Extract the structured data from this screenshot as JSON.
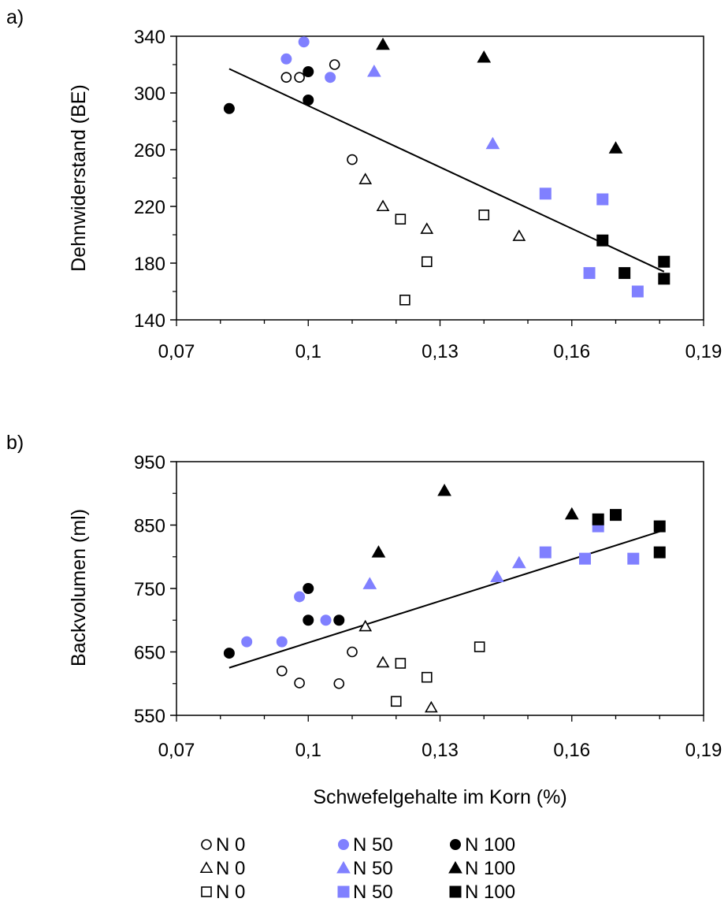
{
  "colors": {
    "n0": "#000000",
    "n50": "#8080ff",
    "n100": "#000000"
  },
  "chart_data": [
    {
      "type": "scatter",
      "panel_label": "a)",
      "ylabel": "Dehnwiderstand (BE)",
      "xlim": [
        0.07,
        0.19
      ],
      "ylim": [
        140,
        340
      ],
      "x_ticks": [
        "0,07",
        "0,1",
        "0,13",
        "0,16",
        "0,19"
      ],
      "y_ticks": [
        "140",
        "180",
        "220",
        "260",
        "300",
        "340"
      ],
      "trendline": [
        [
          0.082,
          317
        ],
        [
          0.181,
          174
        ]
      ],
      "series": [
        {
          "marker": "circle-open",
          "group": "N 0",
          "points": [
            [
              0.095,
              311
            ],
            [
              0.098,
              311
            ],
            [
              0.106,
              320
            ],
            [
              0.11,
              253
            ]
          ]
        },
        {
          "marker": "circle-filled-blue",
          "group": "N 50",
          "points": [
            [
              0.095,
              324
            ],
            [
              0.099,
              336
            ],
            [
              0.105,
              311
            ]
          ]
        },
        {
          "marker": "circle-filled",
          "group": "N 100",
          "points": [
            [
              0.082,
              289
            ],
            [
              0.1,
              315
            ],
            [
              0.1,
              295
            ]
          ]
        },
        {
          "marker": "triangle-open",
          "group": "N 0",
          "points": [
            [
              0.113,
              239
            ],
            [
              0.117,
              220
            ],
            [
              0.127,
              204
            ],
            [
              0.148,
              199
            ]
          ]
        },
        {
          "marker": "triangle-filled-blue",
          "group": "N 50",
          "points": [
            [
              0.115,
              315
            ],
            [
              0.142,
              264
            ]
          ]
        },
        {
          "marker": "triangle-filled",
          "group": "N 100",
          "points": [
            [
              0.117,
              334
            ],
            [
              0.14,
              325
            ],
            [
              0.17,
              261
            ]
          ]
        },
        {
          "marker": "square-open",
          "group": "N 0",
          "points": [
            [
              0.121,
              211
            ],
            [
              0.127,
              181
            ],
            [
              0.122,
              154
            ],
            [
              0.14,
              214
            ]
          ]
        },
        {
          "marker": "square-filled-blue",
          "group": "N 50",
          "points": [
            [
              0.154,
              229
            ],
            [
              0.164,
              173
            ],
            [
              0.167,
              225
            ],
            [
              0.175,
              160
            ]
          ]
        },
        {
          "marker": "square-filled",
          "group": "N 100",
          "points": [
            [
              0.167,
              196
            ],
            [
              0.172,
              173
            ],
            [
              0.181,
              181
            ],
            [
              0.181,
              169
            ]
          ]
        }
      ]
    },
    {
      "type": "scatter",
      "panel_label": "b)",
      "xlabel": "Schwefelgehalte im Korn (%)",
      "ylabel": "Backvolumen (ml)",
      "xlim": [
        0.07,
        0.19
      ],
      "ylim": [
        550,
        950
      ],
      "x_ticks": [
        "0,07",
        "0,1",
        "0,13",
        "0,16",
        "0,19"
      ],
      "y_ticks": [
        "550",
        "650",
        "750",
        "850",
        "950"
      ],
      "trendline": [
        [
          0.082,
          625
        ],
        [
          0.181,
          842
        ]
      ],
      "series": [
        {
          "marker": "circle-open",
          "group": "N 0",
          "points": [
            [
              0.094,
              620
            ],
            [
              0.098,
              601
            ],
            [
              0.107,
              600
            ],
            [
              0.11,
              650
            ]
          ]
        },
        {
          "marker": "circle-filled-blue",
          "group": "N 50",
          "points": [
            [
              0.086,
              666
            ],
            [
              0.094,
              666
            ],
            [
              0.098,
              737
            ],
            [
              0.104,
              700
            ]
          ]
        },
        {
          "marker": "circle-filled",
          "group": "N 100",
          "points": [
            [
              0.082,
              648
            ],
            [
              0.1,
              700
            ],
            [
              0.1,
              750
            ],
            [
              0.107,
              700
            ]
          ]
        },
        {
          "marker": "triangle-open",
          "group": "N 0",
          "points": [
            [
              0.113,
              690
            ],
            [
              0.117,
              633
            ],
            [
              0.128,
              562
            ]
          ]
        },
        {
          "marker": "triangle-filled-blue",
          "group": "N 50",
          "points": [
            [
              0.114,
              757
            ],
            [
              0.143,
              768
            ],
            [
              0.148,
              790
            ]
          ]
        },
        {
          "marker": "triangle-filled",
          "group": "N 100",
          "points": [
            [
              0.116,
              807
            ],
            [
              0.131,
              904
            ],
            [
              0.16,
              867
            ]
          ]
        },
        {
          "marker": "square-open",
          "group": "N 0",
          "points": [
            [
              0.121,
              632
            ],
            [
              0.127,
              610
            ],
            [
              0.12,
              572
            ],
            [
              0.139,
              658
            ]
          ]
        },
        {
          "marker": "square-filled-blue",
          "group": "N 50",
          "points": [
            [
              0.154,
              807
            ],
            [
              0.163,
              797
            ],
            [
              0.166,
              848
            ],
            [
              0.174,
              797
            ]
          ]
        },
        {
          "marker": "square-filled",
          "group": "N 100",
          "points": [
            [
              0.166,
              859
            ],
            [
              0.17,
              866
            ],
            [
              0.18,
              848
            ],
            [
              0.18,
              807
            ]
          ]
        }
      ]
    }
  ],
  "legend": [
    [
      {
        "marker": "circle-open",
        "label": "N 0"
      },
      {
        "marker": "circle-filled-blue",
        "label": "N 50"
      },
      {
        "marker": "circle-filled",
        "label": "N 100"
      }
    ],
    [
      {
        "marker": "triangle-open",
        "label": "N 0"
      },
      {
        "marker": "triangle-filled-blue",
        "label": "N 50"
      },
      {
        "marker": "triangle-filled",
        "label": "N 100"
      }
    ],
    [
      {
        "marker": "square-open",
        "label": "N 0"
      },
      {
        "marker": "square-filled-blue",
        "label": "N 50"
      },
      {
        "marker": "square-filled",
        "label": "N 100"
      }
    ]
  ]
}
